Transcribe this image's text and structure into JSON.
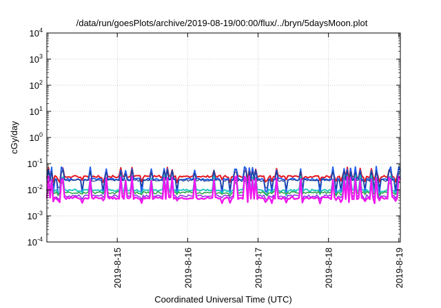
{
  "chart_data": {
    "type": "line",
    "title": "/data/run/goesPlots/archive/2019-08-19/00:00/flux/../bryn/5daysMoon.plot",
    "xlabel": "Coordinated Universal Time (UTC)",
    "ylabel": "cGy/day",
    "y_scale": "log",
    "ylim": [
      0.0001,
      10000
    ],
    "y_ticks": [
      {
        "exp": -4,
        "base": "10",
        "sup": "-4"
      },
      {
        "exp": -3,
        "base": "10",
        "sup": "-3"
      },
      {
        "exp": -2,
        "base": "10",
        "sup": "-2"
      },
      {
        "exp": -1,
        "base": "10",
        "sup": "-1"
      },
      {
        "exp": 0,
        "base": "10",
        "sup": "0"
      },
      {
        "exp": 1,
        "base": "10",
        "sup": "1"
      },
      {
        "exp": 2,
        "base": "10",
        "sup": "2"
      },
      {
        "exp": 3,
        "base": "10",
        "sup": "3"
      },
      {
        "exp": 4,
        "base": "10",
        "sup": "4"
      }
    ],
    "xlim": [
      "2019-08-14T00:00",
      "2019-08-19T00:30"
    ],
    "x_ticks": [
      {
        "label": "2019-8-15",
        "t": "2019-08-15"
      },
      {
        "label": "2019-8-16",
        "t": "2019-08-16"
      },
      {
        "label": "2019-8-17",
        "t": "2019-08-17"
      },
      {
        "label": "2019-8-18",
        "t": "2019-08-18"
      },
      {
        "label": "2019-8-19",
        "t": "2019-08-19"
      }
    ],
    "grid": true,
    "legend": "none",
    "series": [
      {
        "color": "#e8141e",
        "baseline": 0.032,
        "spike": 0.06,
        "dip": 0.022,
        "width": 2
      },
      {
        "color": "#2060f0",
        "baseline": 0.025,
        "spike": 0.065,
        "dip": 0.008,
        "width": 2
      },
      {
        "color": "#1e3a8a",
        "baseline": 0.023,
        "spike": 0.05,
        "dip": 0.012,
        "width": 1.2
      },
      {
        "color": "#20c8c0",
        "baseline": 0.0095,
        "spike": 0.03,
        "dip": 0.007,
        "width": 2
      },
      {
        "color": "#28a040",
        "baseline": 0.0078,
        "spike": 0.02,
        "dip": 0.0065,
        "width": 1.5
      },
      {
        "color": "#8a2be2",
        "baseline": 0.0058,
        "spike": 0.025,
        "dip": 0.0045,
        "width": 1.5
      },
      {
        "color": "#f018f0",
        "baseline": 0.0048,
        "spike": 0.028,
        "dip": 0.0035,
        "width": 2.4
      }
    ]
  }
}
